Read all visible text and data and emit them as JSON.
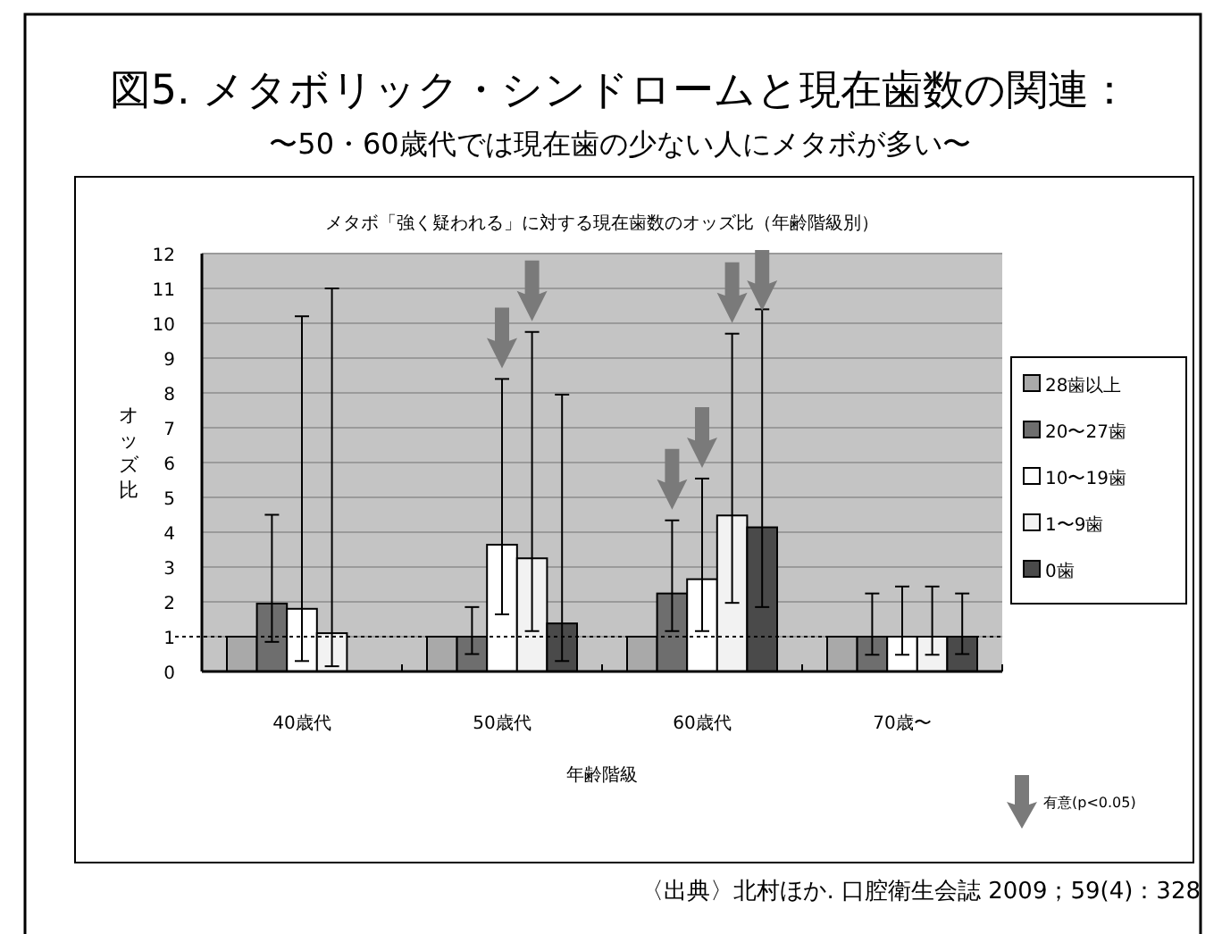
{
  "chart_data": {
    "type": "bar",
    "title": "図5. メタボリック・シンドロームと現在歯数の関連：",
    "subtitle": "〜50・60歳代では現在歯の少ない人にメタボが多い〜",
    "xlabel": "年齢階級",
    "ylabel": "オッズ比",
    "annotations": [
      "メタボ「強く疑われる」に対する現在歯数のオッズ比（年齢階級別）",
      "有意(p<0.05)",
      "〈出典〉北村ほか. 口腔衛生会誌 2009；59(4)：328"
    ],
    "categories": [
      "40歳代",
      "50歳代",
      "60歳代",
      "70歳〜"
    ],
    "series": [
      {
        "name": "28歯以上",
        "color": "#a9a9a9",
        "values": [
          1,
          1,
          1,
          1
        ]
      },
      {
        "name": "20〜27歯",
        "color": "#6e6e6e",
        "values": [
          1.95,
          1.0,
          2.24,
          1.0
        ],
        "errors": [
          [
            0.85,
            4.5
          ],
          [
            0.5,
            1.85
          ],
          [
            1.16,
            4.34
          ],
          [
            0.48,
            2.24
          ]
        ]
      },
      {
        "name": "10〜19歯",
        "color": "#ffffff",
        "values": [
          1.8,
          3.64,
          2.65,
          1.0
        ],
        "errors": [
          [
            0.3,
            10.2
          ],
          [
            1.64,
            8.4
          ],
          [
            1.16,
            5.54
          ],
          [
            0.48,
            2.44
          ]
        ]
      },
      {
        "name": "1〜9歯",
        "color": "#f2f2f2",
        "values": [
          1.1,
          3.25,
          4.48,
          1.0
        ],
        "errors": [
          [
            0.15,
            11.0
          ],
          [
            1.16,
            9.75
          ],
          [
            1.97,
            9.7
          ],
          [
            0.48,
            2.44
          ]
        ]
      },
      {
        "name": "0歯",
        "color": "#4a4a4a",
        "values": [
          null,
          1.38,
          4.14,
          1.0
        ],
        "errors": [
          null,
          [
            0.3,
            7.95
          ],
          [
            1.85,
            10.4
          ],
          [
            0.5,
            2.24
          ]
        ]
      }
    ],
    "ylim": [
      0,
      12
    ],
    "yticks": [
      0,
      1,
      2,
      3,
      4,
      5,
      6,
      7,
      8,
      9,
      10,
      11,
      12
    ],
    "grid": "y",
    "legend": "right",
    "ref_lines": [
      {
        "axis": "y",
        "value": 1,
        "color": "#000000",
        "line_style": "dotted"
      }
    ]
  }
}
